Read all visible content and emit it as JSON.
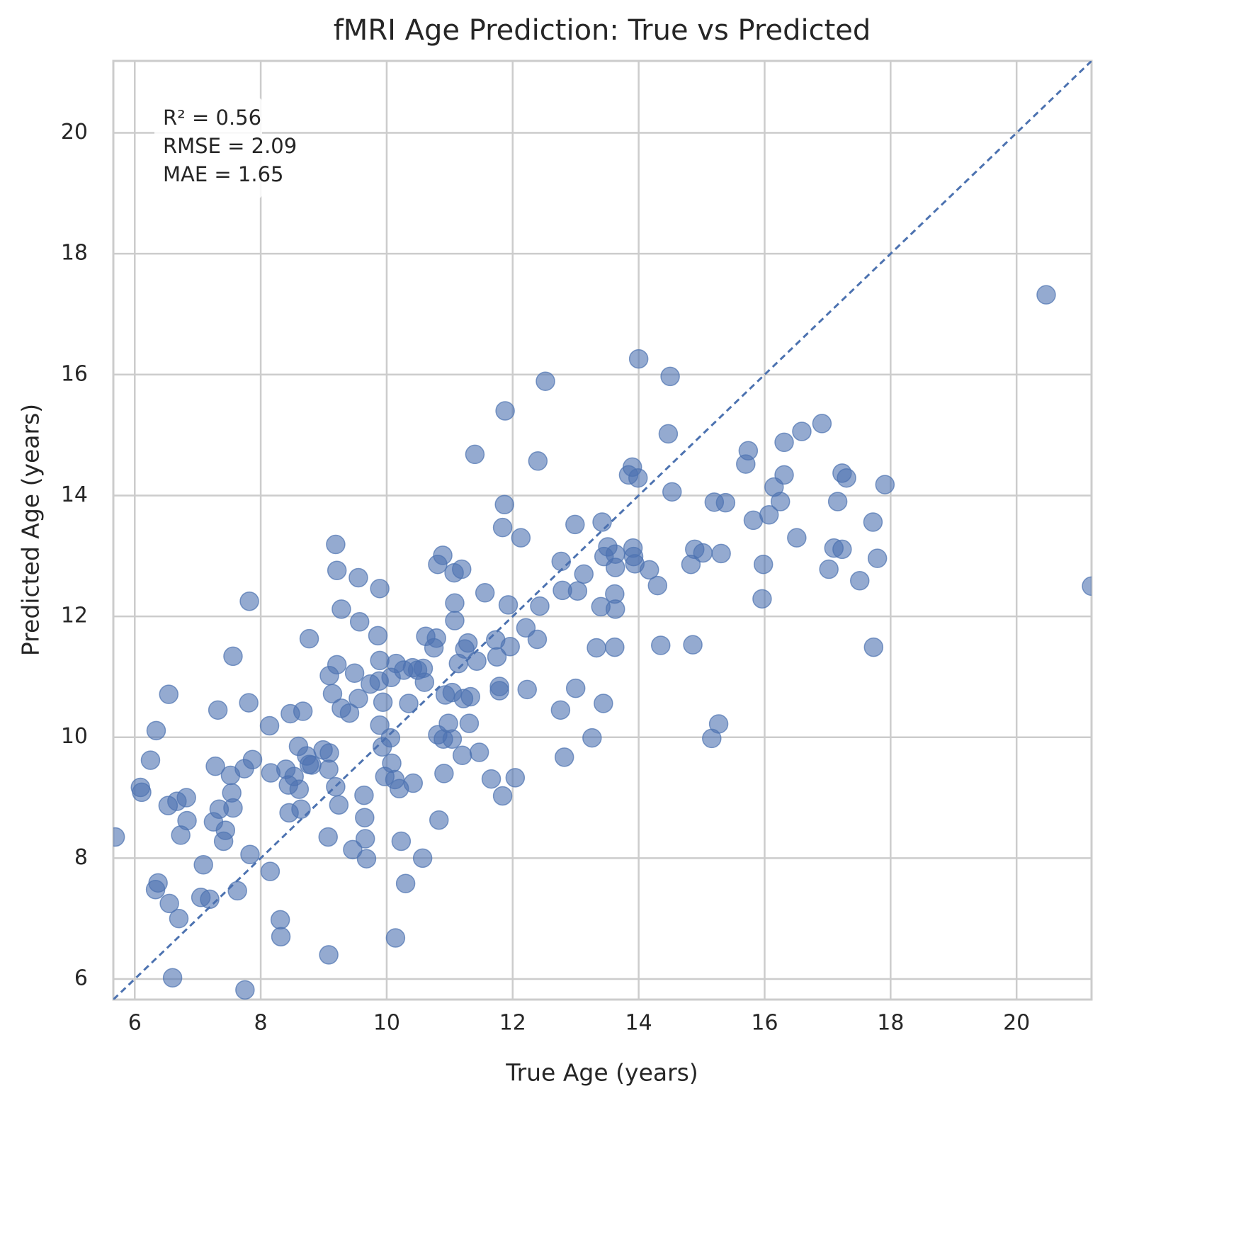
{
  "chart_data": {
    "type": "scatter",
    "title": "fMRI Age Prediction: True vs Predicted",
    "x_label": "True Age (years)",
    "y_label": "Predicted Age (years)",
    "annotation": [
      "R² = 0.56",
      "RMSE = 2.09",
      "MAE = 1.65"
    ],
    "color": "#4c72b0",
    "grid": true,
    "xlim": [
      5.66,
      21.19
    ],
    "ylim": [
      5.66,
      21.19
    ],
    "xticks": [
      6,
      8,
      10,
      12,
      14,
      16,
      18,
      20
    ],
    "yticks": [
      6,
      8,
      10,
      12,
      14,
      16,
      18,
      20
    ],
    "x": [
      20.47,
      21.19,
      5.69,
      14.0,
      14.5,
      12.52,
      11.88,
      14.47,
      11.4,
      12.4,
      16.91,
      16.59,
      16.31,
      15.74,
      15.7,
      13.9,
      13.84,
      13.99,
      14.53,
      16.31,
      16.15,
      17.23,
      17.3,
      17.91,
      15.2,
      15.38,
      16.25,
      17.16,
      16.07,
      15.82,
      17.72,
      11.87,
      11.84,
      13.42,
      12.99,
      12.13,
      16.51,
      9.19,
      13.51,
      13.91,
      17.1,
      17.23,
      14.89,
      15.02,
      15.31,
      13.63,
      13.45,
      13.92,
      10.89,
      17.79,
      12.77,
      14.83,
      13.94,
      15.98,
      10.81,
      13.63,
      9.21,
      11.19,
      11.07,
      14.17,
      17.02,
      13.13,
      9.55,
      17.51,
      14.3,
      9.89,
      12.79,
      13.03,
      11.56,
      13.62,
      7.82,
      15.96,
      11.08,
      11.93,
      12.43,
      13.4,
      13.63,
      9.28,
      11.08,
      9.57,
      12.21,
      9.86,
      10.62,
      10.79,
      8.77,
      12.39,
      11.73,
      11.29,
      10.75,
      11.24,
      11.96,
      13.33,
      13.62,
      14.35,
      14.86,
      17.73,
      11.75,
      7.56,
      9.89,
      11.43,
      11.14,
      10.15,
      9.21,
      10.58,
      10.41,
      10.49,
      10.27,
      9.49,
      9.09,
      10.07,
      9.88,
      10.6,
      9.74,
      11.79,
      13.0,
      12.23,
      11.79,
      6.54,
      9.14,
      11.04,
      10.93,
      11.33,
      11.22,
      9.55,
      7.81,
      9.94,
      10.35,
      13.44,
      9.28,
      7.32,
      12.76,
      8.67,
      9.41,
      8.47,
      10.98,
      11.31,
      15.27,
      9.89,
      8.14,
      6.34,
      10.81,
      10.06,
      13.26,
      15.16,
      10.9,
      11.04,
      8.6,
      9.93,
      8.99,
      9.09,
      11.47,
      11.2,
      8.73,
      12.82,
      7.87,
      6.25,
      10.08,
      8.77,
      7.28,
      8.81,
      7.74,
      9.08,
      8.4,
      10.91,
      8.16,
      7.52,
      8.53,
      9.97,
      10.13,
      11.66,
      12.04,
      10.42,
      8.44,
      9.19,
      6.09,
      10.2,
      8.61,
      6.11,
      7.54,
      9.64,
      11.84,
      6.82,
      6.67,
      6.53,
      9.24,
      7.56,
      7.34,
      8.64,
      8.45,
      9.65,
      6.83,
      7.25,
      10.83,
      7.44,
      6.73,
      9.07,
      9.66,
      7.41,
      10.23,
      9.46,
      7.83,
      9.68,
      10.57,
      7.09,
      8.15,
      6.37,
      10.3,
      6.33,
      7.63,
      7.05,
      7.19,
      6.55,
      6.7,
      8.31,
      8.32,
      10.14,
      9.08,
      6.6,
      7.75
    ],
    "values": [
      17.32,
      12.5,
      8.35,
      16.26,
      15.97,
      15.89,
      15.4,
      15.02,
      14.68,
      14.57,
      15.19,
      15.06,
      14.88,
      14.74,
      14.52,
      14.47,
      14.34,
      14.29,
      14.06,
      14.34,
      14.14,
      14.37,
      14.29,
      14.18,
      13.89,
      13.88,
      13.9,
      13.9,
      13.68,
      13.59,
      13.56,
      13.85,
      13.47,
      13.56,
      13.52,
      13.3,
      13.3,
      13.19,
      13.15,
      13.13,
      13.13,
      13.11,
      13.11,
      13.05,
      13.04,
      13.03,
      12.99,
      12.99,
      13.01,
      12.96,
      12.91,
      12.86,
      12.87,
      12.86,
      12.86,
      12.81,
      12.76,
      12.78,
      12.72,
      12.77,
      12.78,
      12.7,
      12.64,
      12.59,
      12.51,
      12.46,
      12.43,
      12.42,
      12.39,
      12.37,
      12.25,
      12.29,
      12.22,
      12.19,
      12.17,
      12.16,
      12.12,
      12.12,
      11.93,
      11.91,
      11.81,
      11.68,
      11.67,
      11.64,
      11.63,
      11.62,
      11.61,
      11.56,
      11.48,
      11.46,
      11.5,
      11.48,
      11.49,
      11.52,
      11.53,
      11.49,
      11.33,
      11.34,
      11.27,
      11.26,
      11.22,
      11.22,
      11.2,
      11.14,
      11.15,
      11.11,
      11.11,
      11.06,
      11.02,
      10.99,
      10.93,
      10.91,
      10.88,
      10.84,
      10.81,
      10.79,
      10.77,
      10.71,
      10.72,
      10.74,
      10.7,
      10.67,
      10.64,
      10.64,
      10.57,
      10.58,
      10.56,
      10.56,
      10.48,
      10.45,
      10.45,
      10.43,
      10.4,
      10.39,
      10.23,
      10.23,
      10.22,
      10.2,
      10.19,
      10.11,
      10.04,
      9.99,
      9.99,
      9.98,
      9.97,
      9.97,
      9.85,
      9.84,
      9.79,
      9.74,
      9.75,
      9.7,
      9.69,
      9.67,
      9.63,
      9.62,
      9.57,
      9.55,
      9.52,
      9.54,
      9.48,
      9.47,
      9.47,
      9.4,
      9.41,
      9.37,
      9.35,
      9.35,
      9.3,
      9.31,
      9.33,
      9.24,
      9.21,
      9.18,
      9.17,
      9.15,
      9.14,
      9.09,
      9.08,
      9.04,
      9.03,
      9.0,
      8.94,
      8.87,
      8.88,
      8.83,
      8.81,
      8.81,
      8.75,
      8.67,
      8.62,
      8.6,
      8.63,
      8.46,
      8.38,
      8.35,
      8.32,
      8.28,
      8.28,
      8.14,
      8.06,
      7.99,
      8.0,
      7.89,
      7.78,
      7.59,
      7.58,
      7.48,
      7.46,
      7.35,
      7.32,
      7.25,
      7.0,
      6.98,
      6.7,
      6.68,
      6.4,
      6.02,
      5.82
    ]
  }
}
